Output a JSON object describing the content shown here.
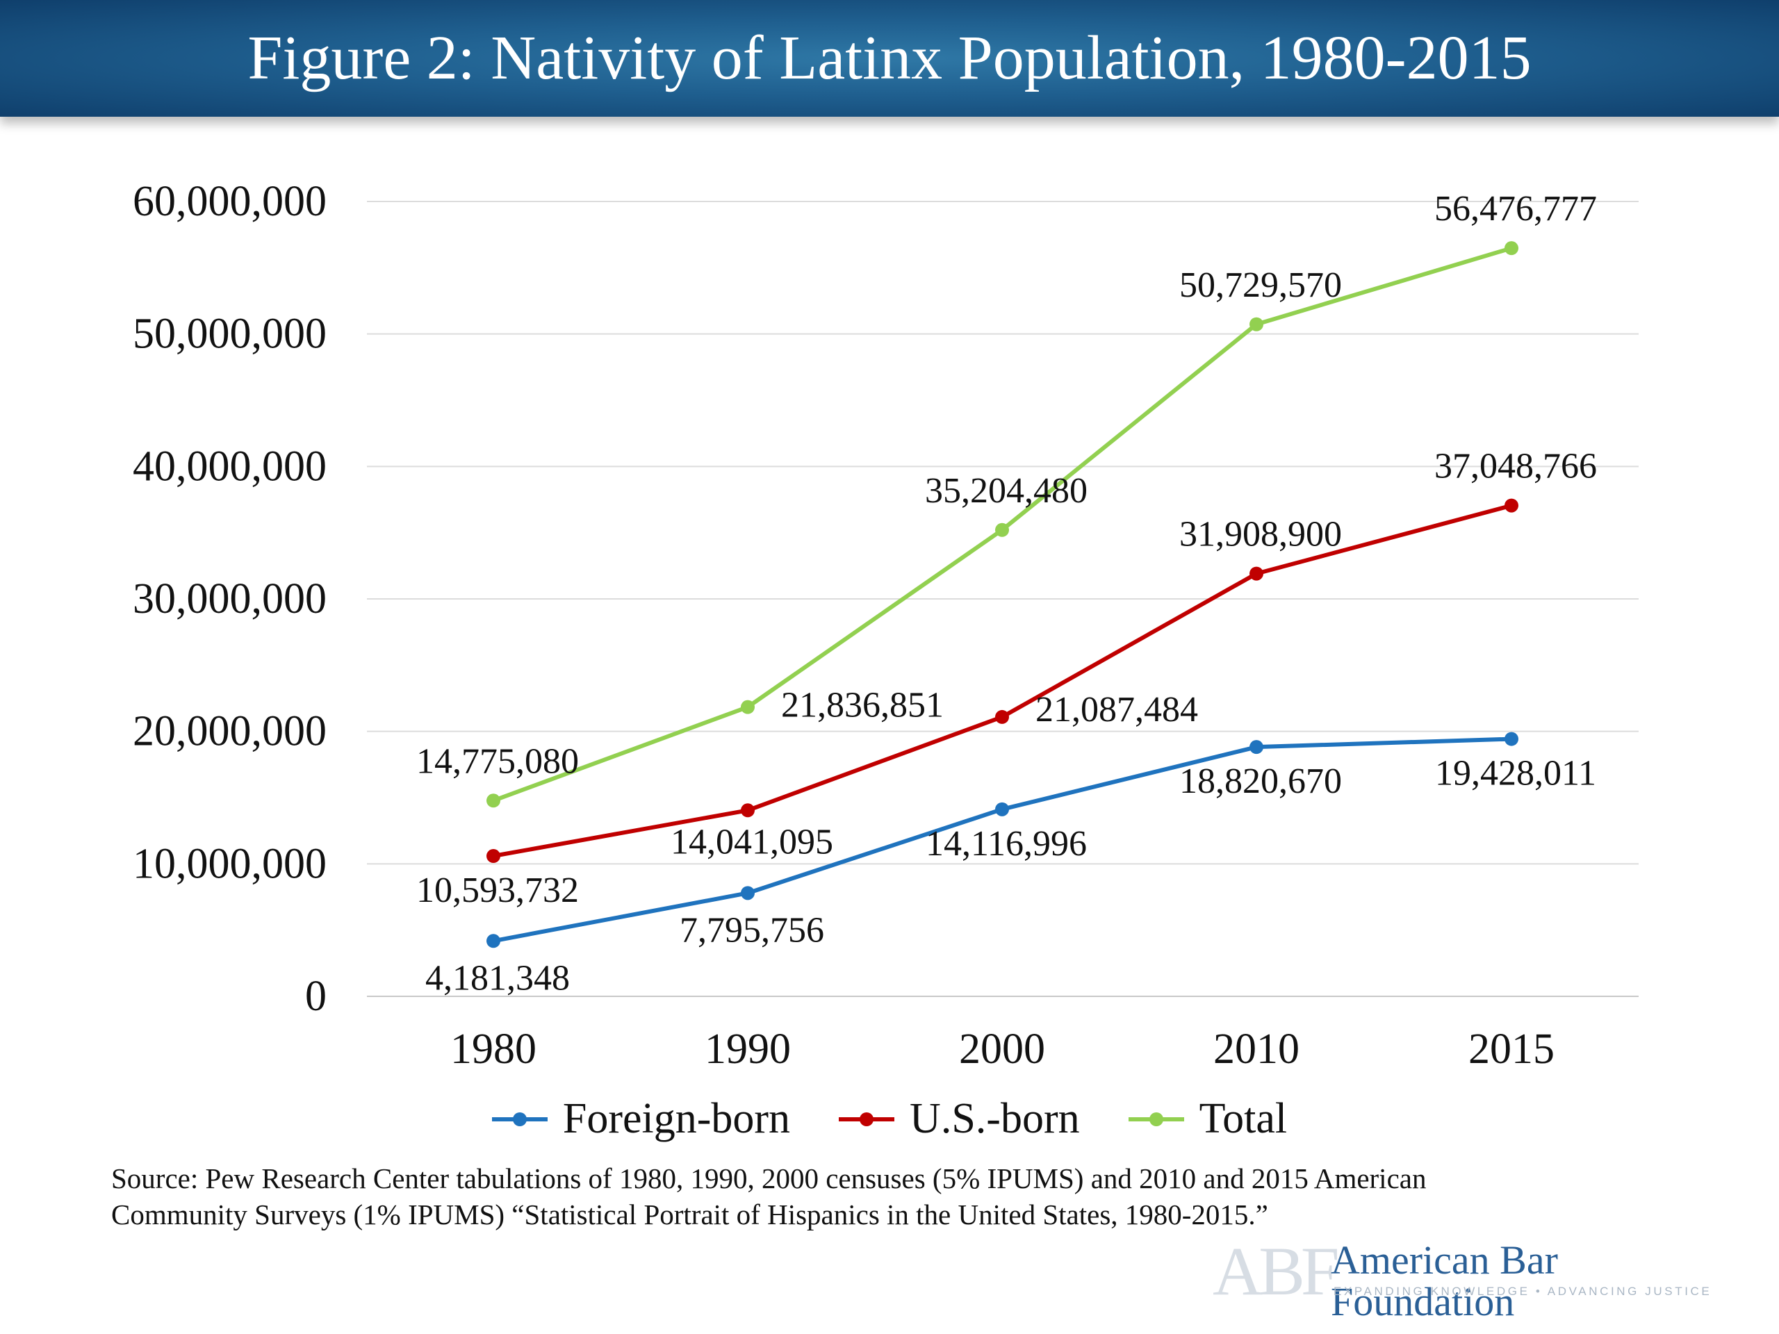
{
  "header": {
    "title": "Figure 2: Nativity of Latinx Population, 1980-2015"
  },
  "chart_data": {
    "type": "line",
    "title": "Figure 2: Nativity of Latinx Population, 1980-2015",
    "xlabel": "",
    "ylabel": "",
    "categories": [
      "1980",
      "1990",
      "2000",
      "2010",
      "2015"
    ],
    "ylim": [
      0,
      60000000
    ],
    "yticks": [
      "0",
      "10,000,000",
      "20,000,000",
      "30,000,000",
      "40,000,000",
      "50,000,000",
      "60,000,000"
    ],
    "grid": true,
    "legend_position": "bottom",
    "series": [
      {
        "name": "Foreign-born",
        "color": "#1f73be",
        "values": [
          4181348,
          7795756,
          14116996,
          18820670,
          19428011
        ],
        "labels": [
          "4,181,348",
          "7,795,756",
          "14,116,996",
          "18,820,670",
          "19,428,011"
        ]
      },
      {
        "name": "U.S.-born",
        "color": "#c00000",
        "values": [
          10593732,
          14041095,
          21087484,
          31908900,
          37048766
        ],
        "labels": [
          "10,593,732",
          "14,041,095",
          "21,087,484",
          "31,908,900",
          "37,048,766"
        ]
      },
      {
        "name": "Total",
        "color": "#92d050",
        "values": [
          14775080,
          21836851,
          35204480,
          50729570,
          56476777
        ],
        "labels": [
          "14,775,080",
          "21,836,851",
          "35,204,480",
          "50,729,570",
          "56,476,777"
        ]
      }
    ]
  },
  "source": {
    "line1": "Source: Pew Research Center tabulations of 1980, 1990, 2000 censuses (5% IPUMS) and 2010 and 2015 American",
    "line2": "Community Surveys (1% IPUMS) “Statistical Portrait of Hispanics in the United States, 1980-2015.”"
  },
  "logo": {
    "mark": "ABF",
    "name": "American Bar Foundation",
    "tagline": "EXPANDING KNOWLEDGE • ADVANCING JUSTICE"
  }
}
